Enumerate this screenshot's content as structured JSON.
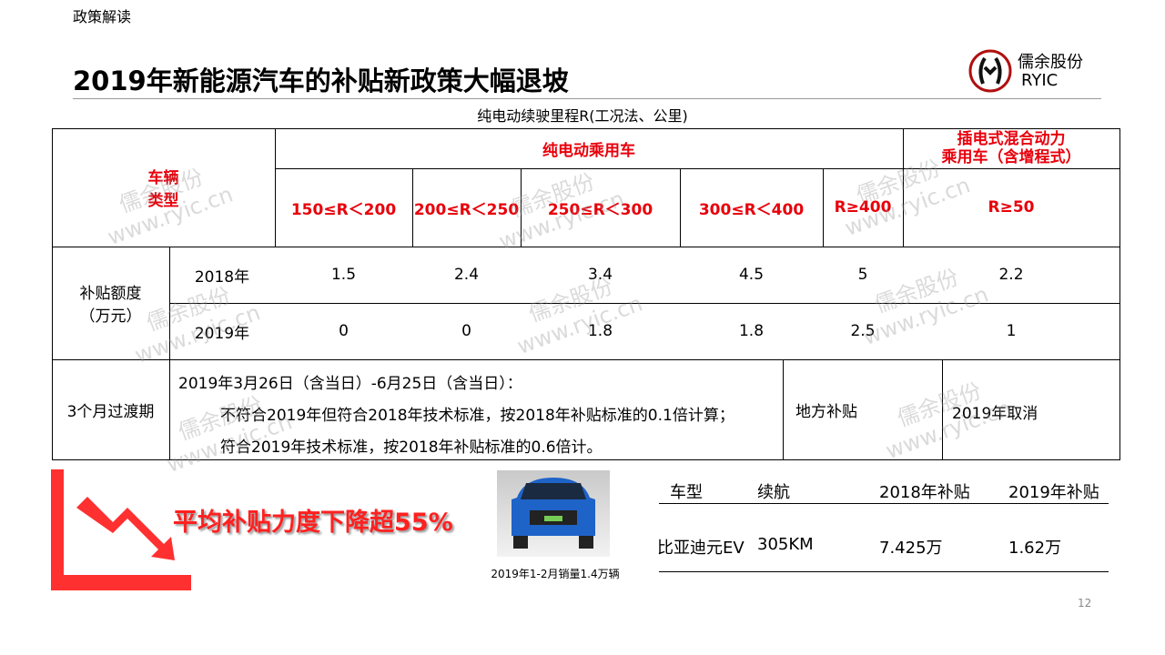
{
  "section": "政策解读",
  "title": "2019年新能源汽车的补贴新政策大幅退坡",
  "logo": {
    "text": "儒余股份",
    "sub": "RYIC"
  },
  "table_caption": "纯电动续驶里程R(工况法、公里)",
  "table": {
    "corner": "车辆\n类型",
    "bev_group": "纯电动乘用车",
    "phev_group": "插电式混合动力\n乘用车（含增程式）",
    "ranges": [
      "150≤R＜200",
      "200≤R＜250",
      "250≤R＜300",
      "300≤R＜400",
      "R≥400",
      "R≥50"
    ],
    "subsidy_label": "补贴额度\n（万元）",
    "rows": [
      {
        "year": "2018年",
        "values": [
          "1.5",
          "2.4",
          "3.4",
          "4.5",
          "5",
          "2.2"
        ]
      },
      {
        "year": "2019年",
        "values": [
          "0",
          "0",
          "1.8",
          "1.8",
          "2.5",
          "1"
        ]
      }
    ],
    "transition_label": "3个月过渡期",
    "transition_lines": [
      "2019年3月26日（含当日）-6月25日（含当日）：",
      "不符合2019年但符合2018年技术标准，按2018年补贴标准的0.1倍计算；",
      "符合2019年技术标准，按2018年补贴标准的0.6倍计。"
    ],
    "local_label": "地方补贴",
    "local_value": "2019年取消"
  },
  "watermark": {
    "name": "儒余股份",
    "url": "www.ryic.cn"
  },
  "decline_text": "平均补贴力度下降超55%",
  "accent": "#e8000b",
  "car_caption": "2019年1-2月销量1.4万辆",
  "compare": {
    "headers": [
      "车型",
      "续航",
      "2018年补贴",
      "2019年补贴"
    ],
    "row": [
      "比亚迪元EV",
      "305KM",
      "7.425万",
      "1.62万"
    ]
  },
  "page_number": "12"
}
